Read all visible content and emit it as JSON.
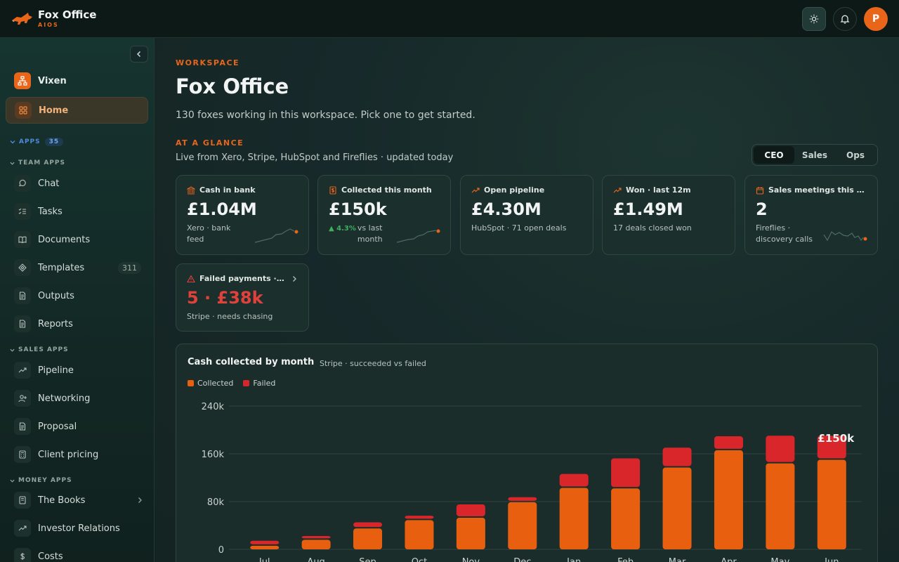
{
  "brand": {
    "title": "Fox Office",
    "subtitle": "AIOS"
  },
  "topbar": {
    "avatar_initial": "P"
  },
  "sidebar": {
    "vixen": "Vixen",
    "home": "Home",
    "apps_label": "APPS",
    "apps_count": "35",
    "team_apps": "TEAM APPS",
    "team_items": [
      {
        "label": "Chat",
        "icon": "chat-bubble-icon"
      },
      {
        "label": "Tasks",
        "icon": "checklist-icon"
      },
      {
        "label": "Documents",
        "icon": "book-icon"
      },
      {
        "label": "Templates",
        "icon": "template-icon",
        "badge": "311"
      },
      {
        "label": "Outputs",
        "icon": "file-icon"
      },
      {
        "label": "Reports",
        "icon": "file-icon"
      }
    ],
    "sales_apps": "SALES APPS",
    "sales_items": [
      {
        "label": "Pipeline",
        "icon": "trend-icon"
      },
      {
        "label": "Networking",
        "icon": "user-plus-icon"
      },
      {
        "label": "Proposal",
        "icon": "file-icon"
      },
      {
        "label": "Client pricing",
        "icon": "calculator-icon"
      }
    ],
    "money_apps": "MONEY APPS",
    "money_items": [
      {
        "label": "The Books",
        "icon": "ledger-icon"
      },
      {
        "label": "Investor Relations",
        "icon": "trend-icon"
      },
      {
        "label": "Costs",
        "icon": "dollar-icon"
      }
    ]
  },
  "main": {
    "eyebrow": "WORKSPACE",
    "title": "Fox Office",
    "subtitle": "130 foxes working in this workspace. Pick one to get started.",
    "glance_label": "AT A GLANCE",
    "glance_sub": "Live from Xero, Stripe, HubSpot and Fireflies · updated today",
    "segments": [
      "CEO",
      "Sales",
      "Ops"
    ],
    "active_segment": "CEO"
  },
  "cards": [
    {
      "title": "Cash in bank",
      "value": "£1.04M",
      "sub": "Xero · bank feed"
    },
    {
      "title": "Collected this month",
      "value": "£150k",
      "delta": "▲ 4.3%",
      "sub": "vs last month"
    },
    {
      "title": "Open pipeline",
      "value": "£4.30M",
      "sub": "HubSpot · 71 open deals"
    },
    {
      "title": "Won · last 12m",
      "value": "£1.49M",
      "sub": "17 deals closed won"
    },
    {
      "title": "Sales meetings this …",
      "value": "2",
      "sub": "Fireflies · discovery calls"
    },
    {
      "title": "Failed payments ·…",
      "value": "5 · £38k",
      "sub": "Stripe · needs chasing"
    }
  ],
  "chart_data": {
    "type": "bar",
    "stacked": true,
    "title": "Cash collected by month",
    "subtitle": "Stripe · succeeded vs failed",
    "categories": [
      "Jul",
      "Aug",
      "Sep",
      "Oct",
      "Nov",
      "Dec",
      "Jan",
      "Feb",
      "Mar",
      "Apr",
      "May",
      "Jun"
    ],
    "series": [
      {
        "name": "Collected",
        "color": "#e8600f",
        "values": [
          6000,
          16000,
          35000,
          49000,
          53000,
          79000,
          103000,
          102000,
          137000,
          166000,
          144000,
          150000
        ]
      },
      {
        "name": "Failed",
        "color": "#d9262b",
        "values": [
          6000,
          4000,
          8000,
          5000,
          20000,
          6000,
          21000,
          48000,
          31000,
          21000,
          44000,
          38000
        ]
      }
    ],
    "ylim": [
      0,
      240000
    ],
    "yticks": [
      "0",
      "80k",
      "160k",
      "240k"
    ],
    "highlight_label": "£150k",
    "grid": true,
    "legend": "top-left"
  }
}
